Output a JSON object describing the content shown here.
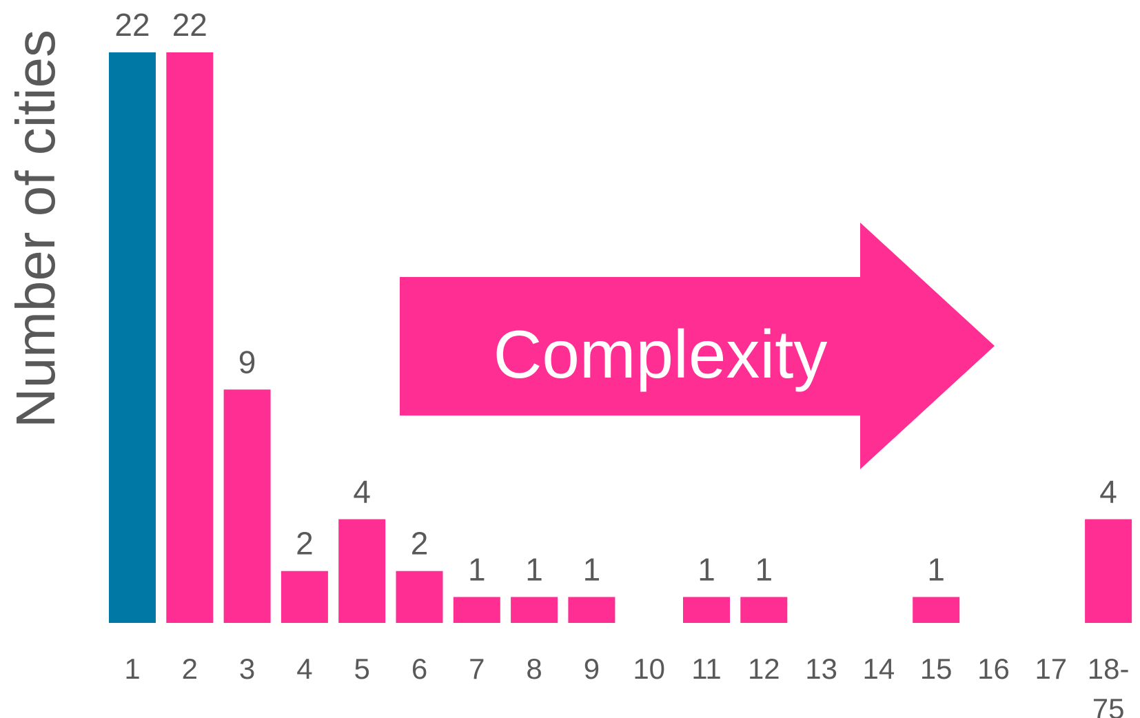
{
  "chart_data": {
    "type": "bar",
    "title": "",
    "xlabel": "",
    "ylabel": "Number of cities",
    "ylim": [
      0,
      22
    ],
    "grid": false,
    "legend": "none",
    "categories": [
      [
        "1"
      ],
      [
        "2"
      ],
      [
        "3"
      ],
      [
        "4"
      ],
      [
        "5"
      ],
      [
        "6"
      ],
      [
        "7"
      ],
      [
        "8"
      ],
      [
        "9"
      ],
      [
        "10"
      ],
      [
        "11"
      ],
      [
        "12"
      ],
      [
        "13"
      ],
      [
        "14"
      ],
      [
        "15"
      ],
      [
        "16"
      ],
      [
        "17"
      ],
      [
        "18-",
        "75"
      ]
    ],
    "values": [
      22,
      22,
      9,
      2,
      4,
      2,
      1,
      1,
      1,
      null,
      1,
      1,
      null,
      null,
      1,
      null,
      null,
      4
    ],
    "highlight_index": 0,
    "colors": {
      "highlight": "#0078A6",
      "bar": "#FF2E93",
      "arrow": "#FF2E93",
      "text": "#595959"
    },
    "annotation": {
      "shape": "right-arrow",
      "text": "Complexity"
    }
  }
}
